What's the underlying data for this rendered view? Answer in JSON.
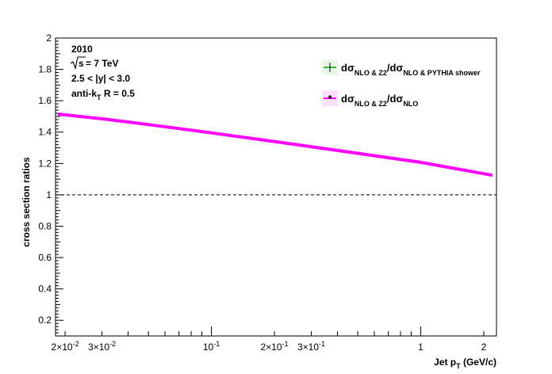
{
  "chart_data": {
    "type": "line",
    "xlabel": {
      "main": "Jet p",
      "sub": "T",
      "tail": " (GeV/c)"
    },
    "ylabel": "cross section ratios",
    "xscale": "log",
    "xlim": [
      0.018,
      2.3
    ],
    "ylim": [
      0.1,
      2.0
    ],
    "y_ticks": [
      "0.2",
      "0.4",
      "0.6",
      "0.8",
      "1",
      "1.2",
      "1.4",
      "1.6",
      "1.8",
      "2"
    ],
    "x_tick_labels": [
      {
        "value": 0.02,
        "mant": "2×10",
        "exp": "-2"
      },
      {
        "value": 0.03,
        "mant": "3×10",
        "exp": "-2"
      },
      {
        "value": 0.1,
        "mant": "10",
        "exp": "-1"
      },
      {
        "value": 0.2,
        "mant": "2×10",
        "exp": "-1"
      },
      {
        "value": 0.3,
        "mant": "3×10",
        "exp": "-1"
      },
      {
        "value": 1,
        "mant": "1",
        "exp": ""
      },
      {
        "value": 2,
        "mant": "2",
        "exp": ""
      }
    ],
    "reference_line": {
      "y": 1.0,
      "style": "dashed"
    },
    "annotations": {
      "year": "2010",
      "sqrt_s": "7 TeV",
      "rapidity": "2.5 < |y| < 3.0",
      "algo_main": "anti-k",
      "algo_sub": "T",
      "algo_tail": " R = 0.5"
    },
    "legend": [
      {
        "num_sub": "NLO & Z2",
        "den_sub": "NLO & PYTHIA shower",
        "color": "#00aa00"
      },
      {
        "num_sub": "NLO & Z2",
        "den_sub": "NLO",
        "color": "#ff00ff"
      }
    ],
    "legend_placement": "top-right",
    "series": [
      {
        "color": "#ff00ff",
        "x": [
          0.0185,
          0.03,
          0.05,
          0.1,
          0.2,
          0.5,
          1.0,
          2.2
        ],
        "y": [
          1.515,
          1.485,
          1.448,
          1.395,
          1.34,
          1.265,
          1.207,
          1.125
        ]
      }
    ],
    "grid": false
  }
}
